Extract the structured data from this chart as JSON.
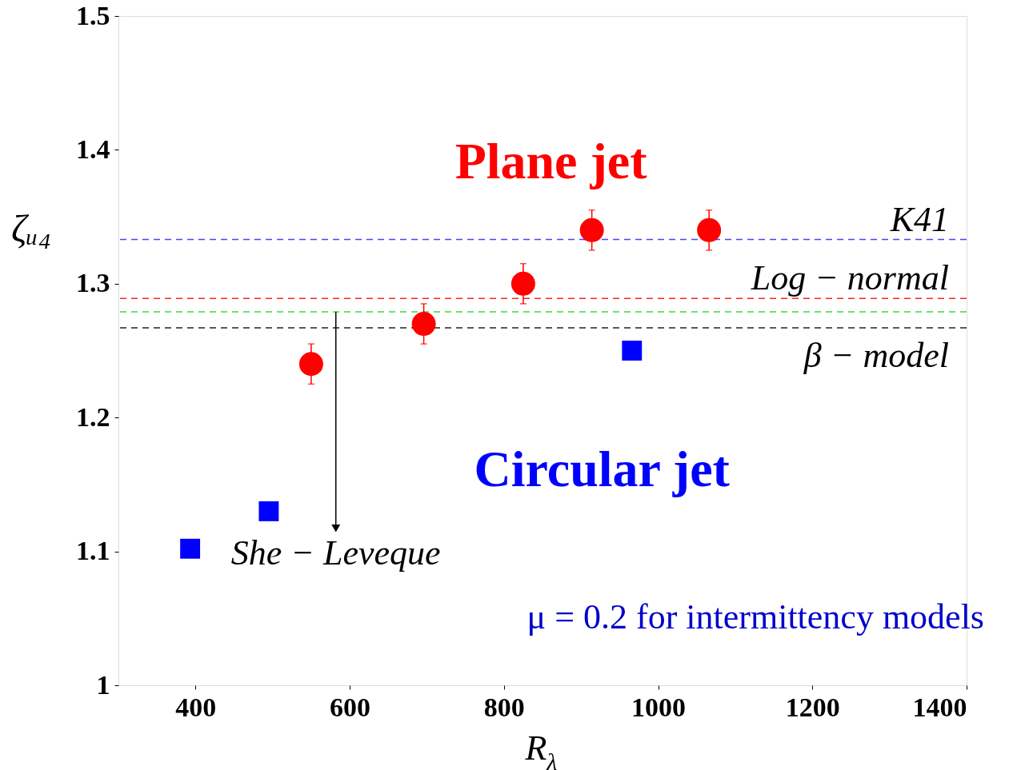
{
  "chart_data": {
    "type": "scatter",
    "xlabel": "R$_{λ}$",
    "ylabel": "ζᵤ₄",
    "xlim": [
      300,
      1400
    ],
    "xticks": [
      400,
      600,
      800,
      1000,
      1200,
      1400
    ],
    "ylim": [
      1,
      1.5
    ],
    "yticks": [
      1,
      1.1,
      1.2,
      1.3,
      1.4,
      1.5
    ],
    "grid": false,
    "legend": false,
    "series": [
      {
        "name": "Plane jet",
        "color": "#ff0000",
        "marker": "circle",
        "x": [
          550,
          696,
          825,
          914,
          1066
        ],
        "values": [
          1.24,
          1.27,
          1.3,
          1.34,
          1.34
        ],
        "errors": [
          0.015,
          0.015,
          0.015,
          0.015,
          0.015
        ]
      },
      {
        "name": "Circular jet",
        "color": "#0000ff",
        "marker": "square",
        "x": [
          393,
          495,
          966
        ],
        "values": [
          1.102,
          1.13,
          1.25
        ]
      }
    ],
    "ref_lines": [
      {
        "axis": "y",
        "value": 1.333,
        "label": "K41",
        "color": "#4444ff",
        "line_style": "dashed"
      },
      {
        "axis": "y",
        "value": 1.289,
        "label": "Log − normal",
        "color": "#ff2222",
        "line_style": "dashed"
      },
      {
        "axis": "y",
        "value": 1.279,
        "label": null,
        "color": "#33dd33",
        "line_style": "dashed"
      },
      {
        "axis": "y",
        "value": 1.267,
        "label": "β − model",
        "color": "#222222",
        "line_style": "dashed"
      }
    ],
    "annotations": [
      {
        "text": "She − Leveque",
        "x": 582,
        "y": 1.279
      },
      "μ = 0.2 for intermittency models"
    ]
  }
}
